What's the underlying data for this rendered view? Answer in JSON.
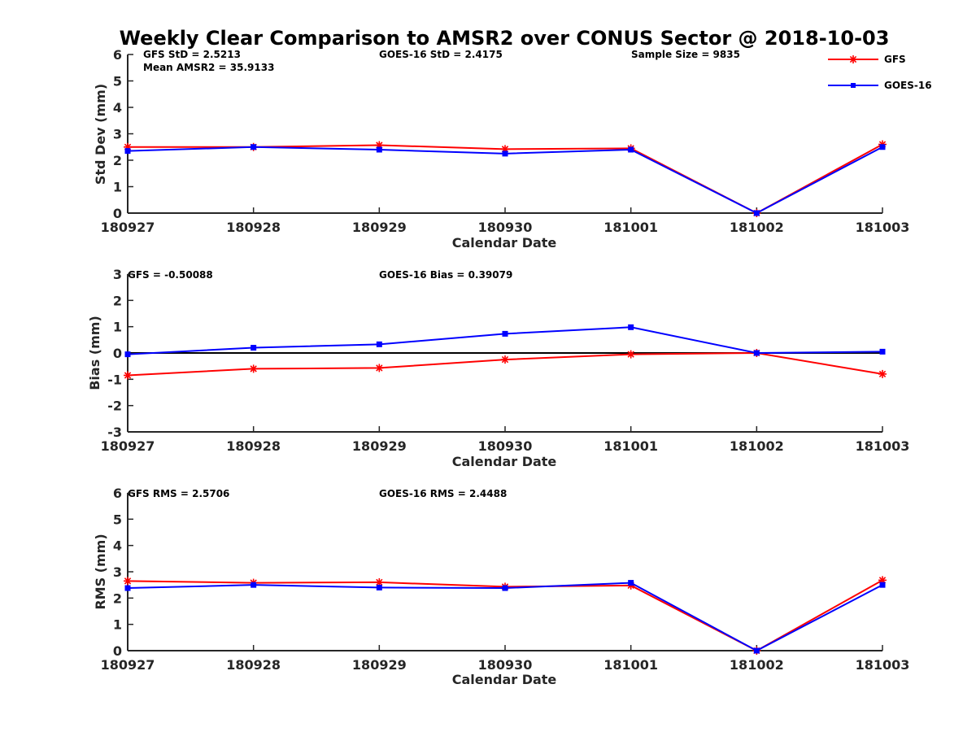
{
  "colors": {
    "gfs": "#ff0000",
    "goes": "#0000ff",
    "zero_line": "#000000",
    "axis": "#262626"
  },
  "legend": {
    "placement": "top-right",
    "items": [
      {
        "label": "GFS",
        "color": "#ff0000",
        "marker": "asterisk"
      },
      {
        "label": "GOES-16",
        "color": "#0000ff",
        "marker": "square"
      }
    ]
  },
  "chart_data": [
    {
      "type": "line",
      "title": "Weekly Clear Comparison to AMSR2 over CONUS Sector @ 2018-10-03",
      "xlabel": "Calendar Date",
      "ylabel": "Std Dev (mm)",
      "categories": [
        "180927",
        "180928",
        "180929",
        "180930",
        "181001",
        "181002",
        "181003"
      ],
      "ylim": [
        0,
        6
      ],
      "yticks": [
        "0",
        "1",
        "2",
        "3",
        "4",
        "5",
        "6"
      ],
      "zero_line": false,
      "series": [
        {
          "name": "GFS",
          "values": [
            2.5,
            2.5,
            2.57,
            2.42,
            2.45,
            0.0,
            2.6
          ]
        },
        {
          "name": "GOES-16",
          "values": [
            2.35,
            2.5,
            2.4,
            2.25,
            2.4,
            0.0,
            2.5
          ]
        }
      ],
      "annotations": [
        "GFS StD = 2.5213",
        "Mean AMSR2 = 35.9133",
        "GOES-16 StD = 2.4175",
        "Sample Size = 9835"
      ]
    },
    {
      "type": "line",
      "title": "",
      "xlabel": "Calendar Date",
      "ylabel": "Bias (mm)",
      "categories": [
        "180927",
        "180928",
        "180929",
        "180930",
        "181001",
        "181002",
        "181003"
      ],
      "ylim": [
        -3,
        3
      ],
      "yticks": [
        "-3",
        "-2",
        "-1",
        "0",
        "1",
        "2",
        "3"
      ],
      "zero_line": true,
      "series": [
        {
          "name": "GFS",
          "values": [
            -0.85,
            -0.6,
            -0.57,
            -0.25,
            -0.05,
            0.0,
            -0.8
          ]
        },
        {
          "name": "GOES-16",
          "values": [
            -0.05,
            0.2,
            0.33,
            0.73,
            0.98,
            0.0,
            0.05
          ]
        }
      ],
      "annotations": [
        "GFS = -0.50088",
        "GOES-16 Bias  = 0.39079"
      ]
    },
    {
      "type": "line",
      "title": "",
      "xlabel": "Calendar Date",
      "ylabel": "RMS (mm)",
      "categories": [
        "180927",
        "180928",
        "180929",
        "180930",
        "181001",
        "181002",
        "181003"
      ],
      "ylim": [
        0,
        6
      ],
      "yticks": [
        "0",
        "1",
        "2",
        "3",
        "4",
        "5",
        "6"
      ],
      "zero_line": false,
      "series": [
        {
          "name": "GFS",
          "values": [
            2.65,
            2.58,
            2.6,
            2.43,
            2.48,
            0.0,
            2.68
          ]
        },
        {
          "name": "GOES-16",
          "values": [
            2.38,
            2.5,
            2.4,
            2.38,
            2.58,
            0.0,
            2.5
          ]
        }
      ],
      "annotations": [
        "GFS RMS = 2.5706",
        "GOES-16 RMS = 2.4488"
      ]
    }
  ]
}
